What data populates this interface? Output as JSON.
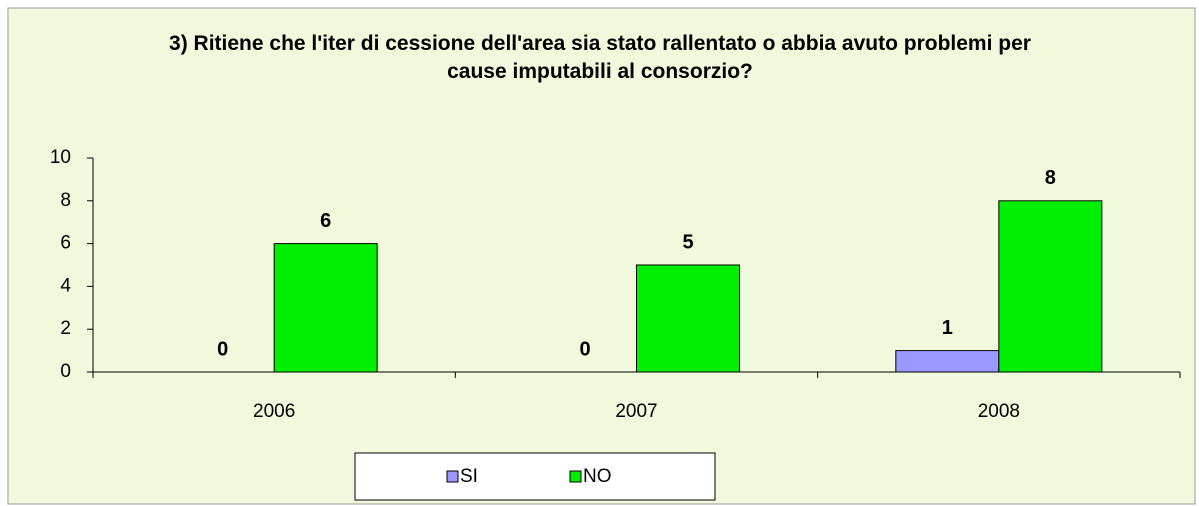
{
  "chart_data": {
    "type": "bar",
    "title": "3) Ritiene che l'iter di cessione dell'area sia stato rallentato o abbia avuto problemi per cause imputabili al consorzio?",
    "categories": [
      "2006",
      "2007",
      "2008"
    ],
    "series": [
      {
        "name": "SI",
        "color": "#9999ff",
        "values": [
          0,
          0,
          1
        ]
      },
      {
        "name": "NO",
        "color": "#00ee00",
        "values": [
          6,
          5,
          8
        ]
      }
    ],
    "ylim": [
      0,
      10
    ],
    "yticks": [
      0,
      2,
      4,
      6,
      8,
      10
    ],
    "grid": false,
    "legend": "bottom"
  }
}
